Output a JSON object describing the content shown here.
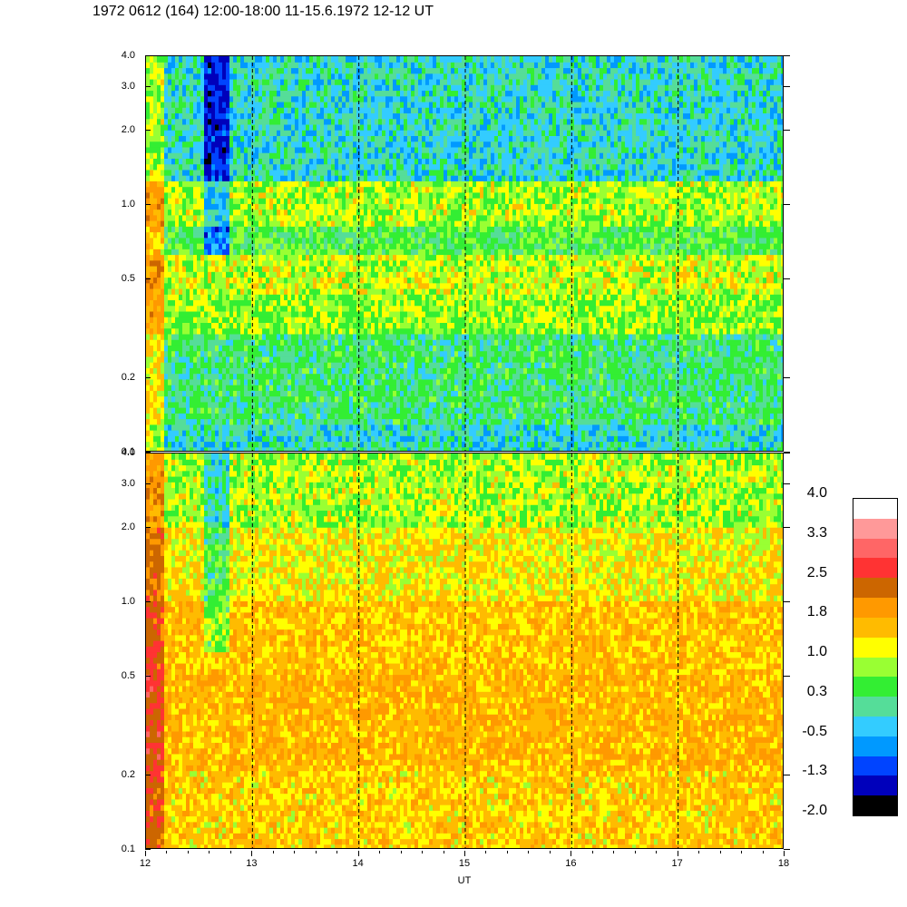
{
  "title": "1972 0612 (164) 12:00-18:00 11-15.6.1972  12-12 UT",
  "chart_data": [
    {
      "type": "heatmap",
      "panel": "upper",
      "x_range": [
        12,
        18
      ],
      "y_range": [
        0.1,
        4.0
      ],
      "y_scale": "log",
      "y_ticks": [
        "0.1",
        "0.2",
        "0.5",
        "1.0",
        "2.0",
        "3.0",
        "4.0"
      ],
      "dashed_gridlines_x": [
        13,
        14,
        15,
        16,
        17
      ],
      "bands": [
        {
          "y": [
            0.1,
            0.13
          ],
          "level": 0.0
        },
        {
          "y": [
            0.13,
            0.3
          ],
          "level": 0.3
        },
        {
          "y": [
            0.3,
            0.42
          ],
          "level": 0.8
        },
        {
          "y": [
            0.42,
            0.6
          ],
          "level": 1.0
        },
        {
          "y": [
            0.6,
            0.8
          ],
          "level": 0.5
        },
        {
          "y": [
            0.8,
            1.2
          ],
          "level": 0.9
        },
        {
          "y": [
            1.2,
            4.0
          ],
          "level": 0.0
        }
      ]
    },
    {
      "type": "heatmap",
      "panel": "lower",
      "x_range": [
        12,
        18
      ],
      "y_range": [
        0.1,
        4.0
      ],
      "y_scale": "log",
      "y_ticks": [
        "0.1",
        "0.2",
        "0.5",
        "1.0",
        "2.0",
        "3.0",
        "4.0"
      ],
      "x_ticks": [
        "12",
        "13",
        "14",
        "15",
        "16",
        "17",
        "18"
      ],
      "xlabel": "UT",
      "dashed_gridlines_x": [
        13,
        14,
        15,
        16,
        17
      ],
      "bands": [
        {
          "y": [
            0.1,
            0.2
          ],
          "level": 1.4
        },
        {
          "y": [
            0.2,
            0.5
          ],
          "level": 1.6
        },
        {
          "y": [
            0.5,
            1.0
          ],
          "level": 1.5
        },
        {
          "y": [
            1.0,
            2.0
          ],
          "level": 1.2
        },
        {
          "y": [
            2.0,
            4.0
          ],
          "level": 0.9
        }
      ]
    }
  ],
  "colorbar": {
    "labels": [
      "4.0",
      "3.3",
      "2.5",
      "1.8",
      "1.0",
      "0.3",
      "-0.5",
      "-1.3",
      "-2.0"
    ],
    "colors": [
      "#ffffff",
      "#ff9999",
      "#ff6666",
      "#ff3333",
      "#cc6600",
      "#ff9900",
      "#ffbb00",
      "#ffff00",
      "#99ff33",
      "#33ee33",
      "#55dd99",
      "#33ccff",
      "#0099ff",
      "#0044ff",
      "#0000bb",
      "#000000"
    ]
  }
}
